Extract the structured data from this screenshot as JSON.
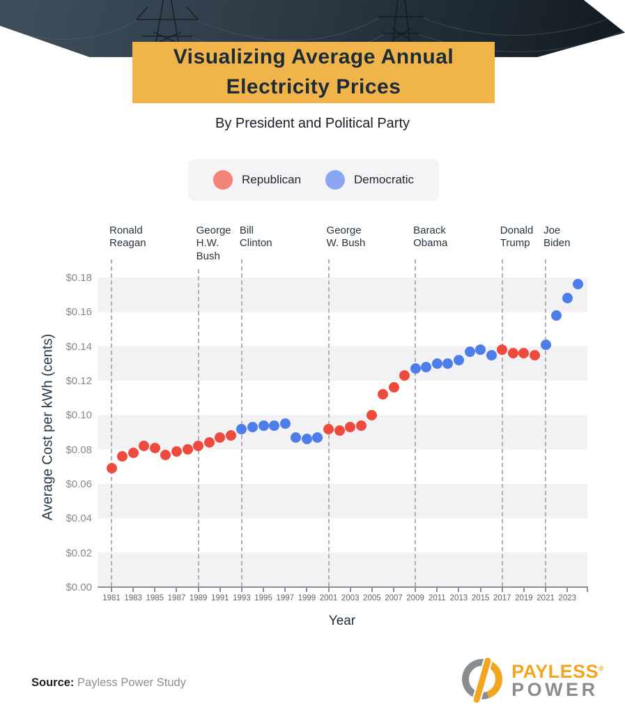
{
  "header": {
    "title_line1": "Visualizing Average Annual",
    "title_line2": "Electricity Prices",
    "subtitle": "By President and Political Party",
    "banner_color": "#F1B44A"
  },
  "legend": {
    "items": [
      {
        "label": "Republican",
        "color": "#F4837A"
      },
      {
        "label": "Democratic",
        "color": "#8BA6F2"
      }
    ]
  },
  "chart_data": {
    "type": "scatter",
    "title": "Visualizing Average Annual Electricity Prices",
    "subtitle": "By President and Political Party",
    "xlabel": "Year",
    "ylabel": "Average Cost per kWh (cents)",
    "x_range": [
      1981,
      2024
    ],
    "ylim": [
      0.0,
      0.18
    ],
    "ytick_step": 0.02,
    "ytick_prefix": "$",
    "xtick_labels": [
      1981,
      1983,
      1985,
      1987,
      1989,
      1991,
      1993,
      1995,
      1997,
      1999,
      2001,
      2003,
      2005,
      2007,
      2009,
      2011,
      2013,
      2015,
      2017,
      2019,
      2021,
      2023
    ],
    "grid_bands": "alternating horizontal gray bands every 0.02",
    "legend_position": "top-center",
    "series_colors": {
      "Republican": "#EE4A3D",
      "Democratic": "#4C7DE9"
    },
    "presidents": [
      {
        "name": "Ronald Reagan",
        "label": "Ronald\nReagan",
        "start_year": 1981,
        "party": "Republican"
      },
      {
        "name": "George H.W. Bush",
        "label": "George\nH.W.\nBush",
        "start_year": 1989,
        "party": "Republican"
      },
      {
        "name": "Bill Clinton",
        "label": "Bill\nClinton",
        "start_year": 1993,
        "party": "Democratic"
      },
      {
        "name": "George W. Bush",
        "label": "George\nW. Bush",
        "start_year": 2001,
        "party": "Republican"
      },
      {
        "name": "Barack Obama",
        "label": "Barack\nObama",
        "start_year": 2009,
        "party": "Democratic"
      },
      {
        "name": "Donald Trump",
        "label": "Donald\nTrump",
        "start_year": 2017,
        "party": "Republican"
      },
      {
        "name": "Joe Biden",
        "label": "Joe\nBiden",
        "start_year": 2021,
        "party": "Democratic"
      }
    ],
    "points": [
      {
        "year": 1981,
        "value": 0.069,
        "party": "Republican"
      },
      {
        "year": 1982,
        "value": 0.076,
        "party": "Republican"
      },
      {
        "year": 1983,
        "value": 0.078,
        "party": "Republican"
      },
      {
        "year": 1984,
        "value": 0.082,
        "party": "Republican"
      },
      {
        "year": 1985,
        "value": 0.081,
        "party": "Republican"
      },
      {
        "year": 1986,
        "value": 0.077,
        "party": "Republican"
      },
      {
        "year": 1987,
        "value": 0.079,
        "party": "Republican"
      },
      {
        "year": 1988,
        "value": 0.08,
        "party": "Republican"
      },
      {
        "year": 1989,
        "value": 0.082,
        "party": "Republican"
      },
      {
        "year": 1990,
        "value": 0.084,
        "party": "Republican"
      },
      {
        "year": 1991,
        "value": 0.087,
        "party": "Republican"
      },
      {
        "year": 1992,
        "value": 0.088,
        "party": "Republican"
      },
      {
        "year": 1993,
        "value": 0.092,
        "party": "Democratic"
      },
      {
        "year": 1994,
        "value": 0.093,
        "party": "Democratic"
      },
      {
        "year": 1995,
        "value": 0.094,
        "party": "Democratic"
      },
      {
        "year": 1996,
        "value": 0.094,
        "party": "Democratic"
      },
      {
        "year": 1997,
        "value": 0.095,
        "party": "Democratic"
      },
      {
        "year": 1998,
        "value": 0.087,
        "party": "Democratic"
      },
      {
        "year": 1999,
        "value": 0.086,
        "party": "Democratic"
      },
      {
        "year": 2000,
        "value": 0.087,
        "party": "Democratic"
      },
      {
        "year": 2001,
        "value": 0.092,
        "party": "Republican"
      },
      {
        "year": 2002,
        "value": 0.091,
        "party": "Republican"
      },
      {
        "year": 2003,
        "value": 0.093,
        "party": "Republican"
      },
      {
        "year": 2004,
        "value": 0.094,
        "party": "Republican"
      },
      {
        "year": 2005,
        "value": 0.1,
        "party": "Republican"
      },
      {
        "year": 2006,
        "value": 0.112,
        "party": "Republican"
      },
      {
        "year": 2007,
        "value": 0.116,
        "party": "Republican"
      },
      {
        "year": 2008,
        "value": 0.123,
        "party": "Republican"
      },
      {
        "year": 2009,
        "value": 0.127,
        "party": "Democratic"
      },
      {
        "year": 2010,
        "value": 0.128,
        "party": "Democratic"
      },
      {
        "year": 2011,
        "value": 0.13,
        "party": "Democratic"
      },
      {
        "year": 2012,
        "value": 0.13,
        "party": "Democratic"
      },
      {
        "year": 2013,
        "value": 0.132,
        "party": "Democratic"
      },
      {
        "year": 2014,
        "value": 0.137,
        "party": "Democratic"
      },
      {
        "year": 2015,
        "value": 0.138,
        "party": "Democratic"
      },
      {
        "year": 2016,
        "value": 0.135,
        "party": "Democratic"
      },
      {
        "year": 2017,
        "value": 0.138,
        "party": "Republican"
      },
      {
        "year": 2018,
        "value": 0.136,
        "party": "Republican"
      },
      {
        "year": 2019,
        "value": 0.136,
        "party": "Republican"
      },
      {
        "year": 2020,
        "value": 0.135,
        "party": "Republican"
      },
      {
        "year": 2021,
        "value": 0.141,
        "party": "Democratic"
      },
      {
        "year": 2022,
        "value": 0.158,
        "party": "Democratic"
      },
      {
        "year": 2023,
        "value": 0.168,
        "party": "Democratic"
      },
      {
        "year": 2024,
        "value": 0.176,
        "party": "Democratic"
      }
    ]
  },
  "footer": {
    "source_label": "Source:",
    "source_text": " Payless Power Study",
    "logo_line1": "PAYLESS",
    "logo_reg": "®",
    "logo_line2": "POWER",
    "logo_orange": "#F2A51F",
    "logo_gray": "#8A8D8F"
  }
}
